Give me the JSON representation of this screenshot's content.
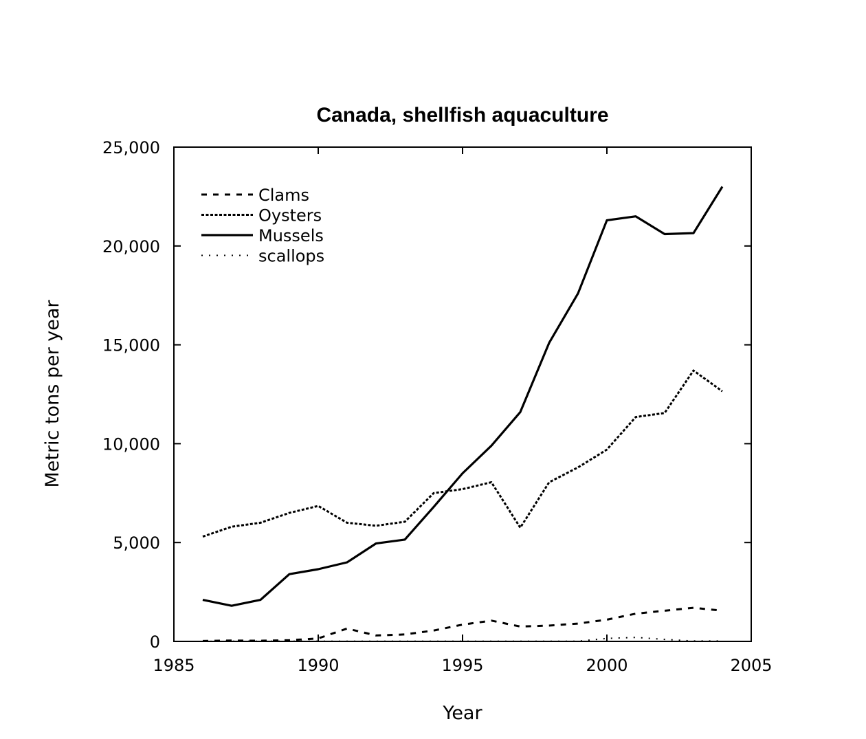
{
  "chart_data": {
    "type": "line",
    "title": "Canada, shellfish aquaculture",
    "xlabel": "Year",
    "ylabel": "Metric tons per year",
    "xlim": [
      1985,
      2005
    ],
    "ylim": [
      0,
      25000
    ],
    "x_ticks": [
      1985,
      1990,
      1995,
      2000,
      2005
    ],
    "x_tick_labels": [
      "1985",
      "1990",
      "1995",
      "2000",
      "2005"
    ],
    "y_ticks": [
      0,
      5000,
      10000,
      15000,
      20000,
      25000
    ],
    "y_tick_labels": [
      "0",
      "5,000",
      "10,000",
      "15,000",
      "20,000",
      "25,000"
    ],
    "grid": false,
    "legend_position": "top-left",
    "x": [
      1986,
      1987,
      1988,
      1989,
      1990,
      1991,
      1992,
      1993,
      1994,
      1995,
      1996,
      1997,
      1998,
      1999,
      2000,
      2001,
      2002,
      2003,
      2004
    ],
    "series": [
      {
        "name": "Clams",
        "style": "dashed",
        "values": [
          20,
          40,
          30,
          60,
          150,
          650,
          300,
          350,
          550,
          850,
          1050,
          750,
          800,
          900,
          1100,
          1400,
          1550,
          1700,
          1550
        ]
      },
      {
        "name": "Oysters",
        "style": "dense-dashed",
        "values": [
          5300,
          5800,
          6000,
          6500,
          6850,
          6000,
          5850,
          6050,
          7500,
          7700,
          8050,
          5750,
          8050,
          8800,
          9700,
          11350,
          11550,
          13700,
          12650
        ]
      },
      {
        "name": "Mussels",
        "style": "solid",
        "values": [
          2100,
          1800,
          2100,
          3400,
          3650,
          4000,
          4950,
          5150,
          6800,
          8500,
          9900,
          11600,
          15100,
          17600,
          21300,
          21500,
          20600,
          20650,
          23000
        ]
      },
      {
        "name": "scallops",
        "style": "dotted",
        "values": [
          0,
          10,
          10,
          10,
          10,
          10,
          10,
          10,
          10,
          10,
          10,
          10,
          10,
          10,
          150,
          200,
          100,
          20,
          20
        ]
      }
    ]
  }
}
